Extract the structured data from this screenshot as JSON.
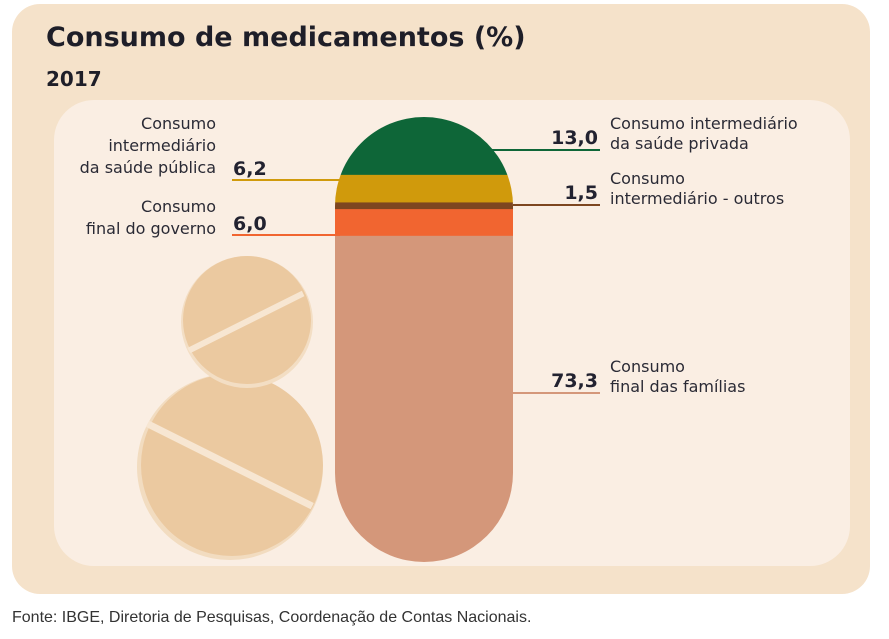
{
  "chart_data": {
    "type": "bar",
    "title": "Consumo de medicamentos (%)",
    "subtitle": "2017",
    "source": "Fonte: IBGE, Diretoria de Pesquisas, Coordenação de Contas Nacionais.",
    "unit": "%",
    "series": [
      {
        "name": "Consumo intermediário da saúde privada",
        "lines": [
          "Consumo intermediário",
          "da saúde privada"
        ],
        "value": 13.0,
        "value_label": "13,0",
        "color": "#0e6638",
        "side": "right"
      },
      {
        "name": "Consumo intermediário da saúde pública",
        "lines": [
          "Consumo",
          "intermediário",
          "da saúde pública"
        ],
        "value": 6.2,
        "value_label": "6,2",
        "color": "#d09a0c",
        "side": "left"
      },
      {
        "name": "Consumo intermediário - outros",
        "lines": [
          "Consumo",
          "intermediário - outros"
        ],
        "value": 1.5,
        "value_label": "1,5",
        "color": "#7d4620",
        "side": "right"
      },
      {
        "name": "Consumo final do governo",
        "lines": [
          "Consumo",
          "final do governo"
        ],
        "value": 6.0,
        "value_label": "6,0",
        "color": "#f16530",
        "side": "left"
      },
      {
        "name": "Consumo final das famílias",
        "lines": [
          "Consumo",
          "final das famílias"
        ],
        "value": 73.3,
        "value_label": "73,3",
        "color": "#d4977a",
        "side": "right"
      }
    ]
  },
  "colors": {
    "outer_bg": "#f5e2ca",
    "inner_bg": "#faeee3",
    "pill": "#ebc9a0"
  }
}
